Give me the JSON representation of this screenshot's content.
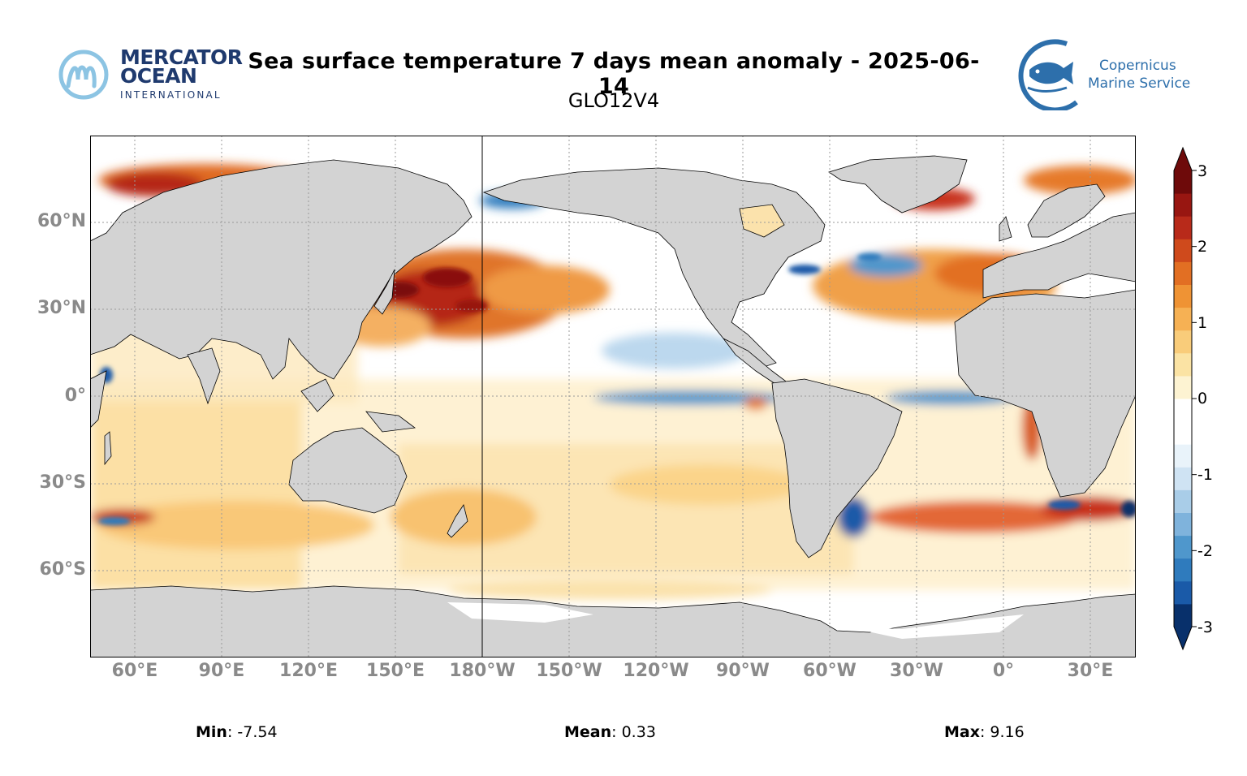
{
  "header": {
    "title": "Sea surface temperature 7 days mean anomaly - 2025-06-14",
    "subtitle": "GLO12V4"
  },
  "logos": {
    "left": {
      "line1": "MERCATOR",
      "line2": "OCEAN",
      "line3": "INTERNATIONAL",
      "color": "#1f3a6e",
      "mark_color": "#8cc4e3",
      "icon": "mercator-m-logo-icon"
    },
    "right": {
      "line1": "Copernicus",
      "line2": "Marine Service",
      "color": "#2d6fab",
      "icon": "copernicus-fish-logo-icon"
    }
  },
  "map": {
    "projection": "equirectangular",
    "lat_labels": [
      "60°N",
      "30°N",
      "0°",
      "30°S",
      "60°S"
    ],
    "lon_labels": [
      "60°E",
      "90°E",
      "120°E",
      "150°E",
      "180°W",
      "150°W",
      "120°W",
      "90°W",
      "60°W",
      "30°W",
      "0°",
      "30°E"
    ],
    "land_color": "#d3d3d3",
    "ocean_base_color": "#ffffff",
    "grid": "dotted",
    "gridline_color": "#9a9a9a"
  },
  "colorbar": {
    "ticks": [
      "3",
      "2",
      "1",
      "0",
      "-1",
      "-2",
      "-3"
    ],
    "colors": [
      "#08306b",
      "#1a5aa8",
      "#2f7bbd",
      "#4f97cc",
      "#7fb3dc",
      "#a9cde8",
      "#cfe3f3",
      "#e9f3fa",
      "#ffffff",
      "#ffffff",
      "#fdf3d2",
      "#fbe3a4",
      "#f9cc7a",
      "#f6b154",
      "#ef9334",
      "#e26f23",
      "#cf4a1c",
      "#b82a1a",
      "#981611",
      "#6e0a0a"
    ],
    "min": -3,
    "max": 3,
    "extend": "both"
  },
  "stats": {
    "min_label": "Min",
    "min_value": ": -7.54",
    "mean_label": "Mean",
    "mean_value": ": 0.33",
    "max_label": "Max",
    "max_value": ": 9.16"
  }
}
